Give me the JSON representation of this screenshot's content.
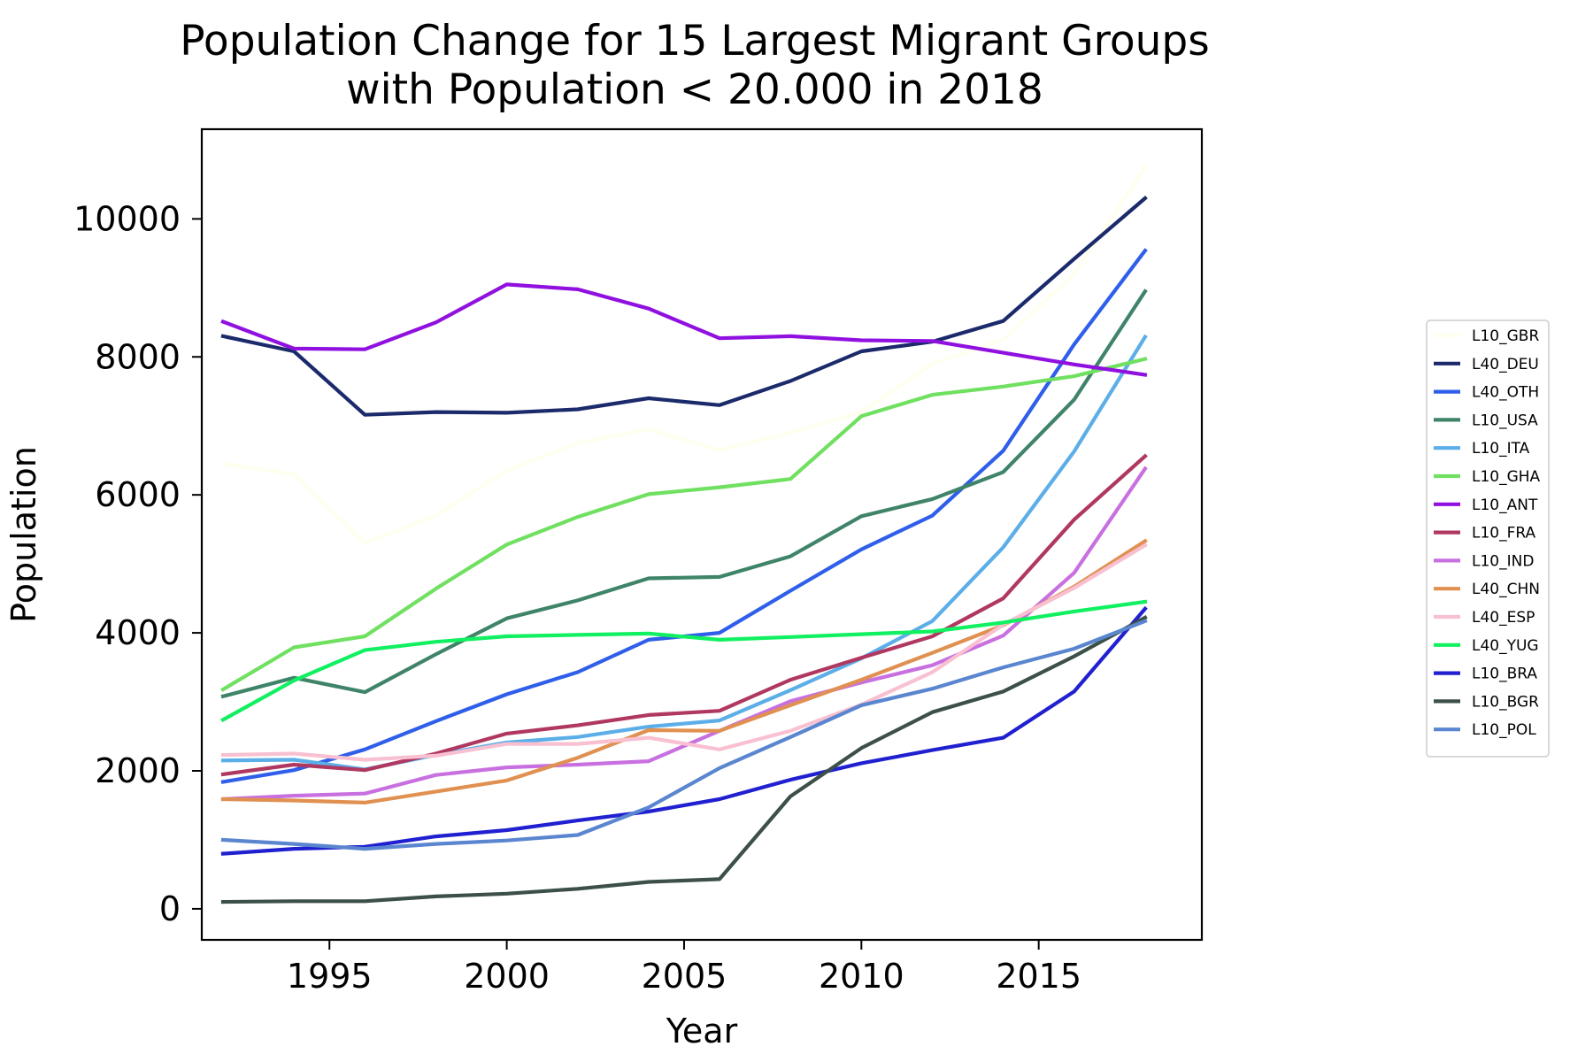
{
  "chart_data": {
    "type": "line",
    "title": "Population Change for 15 Largest Migrant Groups\nwith Population < 20.000 in 2018",
    "xlabel": "Year",
    "ylabel": "Population",
    "xlim": [
      1991.4,
      2019.6
    ],
    "ylim": [
      -450,
      11300
    ],
    "xticks": [
      1995,
      2000,
      2005,
      2010,
      2015
    ],
    "yticks": [
      0,
      2000,
      4000,
      6000,
      8000,
      10000
    ],
    "grid": false,
    "legend_position": "right",
    "x": [
      1992,
      1994,
      1996,
      1998,
      2000,
      2002,
      2004,
      2006,
      2008,
      2010,
      2012,
      2014,
      2016,
      2018
    ],
    "series": [
      {
        "name": "L10_GBR",
        "color": "#fffff0",
        "values": [
          6450,
          6300,
          5300,
          5700,
          6350,
          6750,
          6950,
          6650,
          6900,
          7200,
          7900,
          8250,
          9200,
          10750
        ]
      },
      {
        "name": "L40_DEU",
        "color": "#1b2a6b",
        "values": [
          8300,
          8080,
          7160,
          7200,
          7190,
          7240,
          7400,
          7300,
          7650,
          8080,
          8220,
          8520,
          9420,
          10300
        ]
      },
      {
        "name": "L40_OTH",
        "color": "#2f5fea",
        "values": [
          1840,
          2010,
          2310,
          2720,
          3110,
          3430,
          3900,
          4000,
          4610,
          5210,
          5700,
          6640,
          8180,
          9540
        ]
      },
      {
        "name": "L10_USA",
        "color": "#3f8469",
        "values": [
          3080,
          3350,
          3140,
          3690,
          4210,
          4470,
          4790,
          4810,
          5110,
          5690,
          5940,
          6330,
          7380,
          8950
        ]
      },
      {
        "name": "L10_ITA",
        "color": "#5caee8",
        "values": [
          2150,
          2160,
          2020,
          2230,
          2410,
          2490,
          2640,
          2730,
          3170,
          3630,
          4170,
          5240,
          6630,
          8290
        ]
      },
      {
        "name": "L10_GHA",
        "color": "#70e060",
        "values": [
          3180,
          3790,
          3950,
          4640,
          5280,
          5680,
          6010,
          6110,
          6230,
          7140,
          7450,
          7570,
          7720,
          7970
        ]
      },
      {
        "name": "L10_ANT",
        "color": "#9010e0",
        "values": [
          8510,
          8120,
          8110,
          8500,
          9050,
          8980,
          8700,
          8270,
          8300,
          8240,
          8230,
          8060,
          7890,
          7740
        ]
      },
      {
        "name": "L10_FRA",
        "color": "#b03860",
        "values": [
          1950,
          2090,
          2010,
          2250,
          2540,
          2660,
          2810,
          2870,
          3320,
          3640,
          3950,
          4500,
          5640,
          6560
        ]
      },
      {
        "name": "L10_IND",
        "color": "#c870e0",
        "values": [
          1590,
          1640,
          1670,
          1940,
          2050,
          2090,
          2140,
          2580,
          3010,
          3280,
          3530,
          3960,
          4870,
          6380
        ]
      },
      {
        "name": "L40_CHN",
        "color": "#e09050",
        "values": [
          1590,
          1570,
          1540,
          1700,
          1860,
          2190,
          2590,
          2580,
          2950,
          3320,
          3710,
          4110,
          4670,
          5330
        ]
      },
      {
        "name": "L40_ESP",
        "color": "#f8c0d0",
        "values": [
          2230,
          2250,
          2160,
          2220,
          2390,
          2390,
          2480,
          2310,
          2580,
          2960,
          3430,
          4120,
          4650,
          5270
        ]
      },
      {
        "name": "L40_YUG",
        "color": "#10f060",
        "values": [
          2740,
          3310,
          3750,
          3870,
          3950,
          3970,
          3990,
          3900,
          3940,
          3980,
          4020,
          4150,
          4310,
          4450
        ]
      },
      {
        "name": "L10_BRA",
        "color": "#2020d0",
        "values": [
          800,
          870,
          900,
          1050,
          1140,
          1280,
          1410,
          1590,
          1870,
          2110,
          2300,
          2480,
          3150,
          4350
        ]
      },
      {
        "name": "L10_BGR",
        "color": "#3c5048",
        "values": [
          100,
          110,
          110,
          180,
          220,
          290,
          390,
          430,
          1630,
          2330,
          2850,
          3150,
          3660,
          4220
        ]
      },
      {
        "name": "L10_POL",
        "color": "#5a86d0",
        "values": [
          1000,
          940,
          870,
          940,
          990,
          1070,
          1470,
          2040,
          2490,
          2950,
          3190,
          3500,
          3770,
          4170
        ]
      }
    ]
  }
}
